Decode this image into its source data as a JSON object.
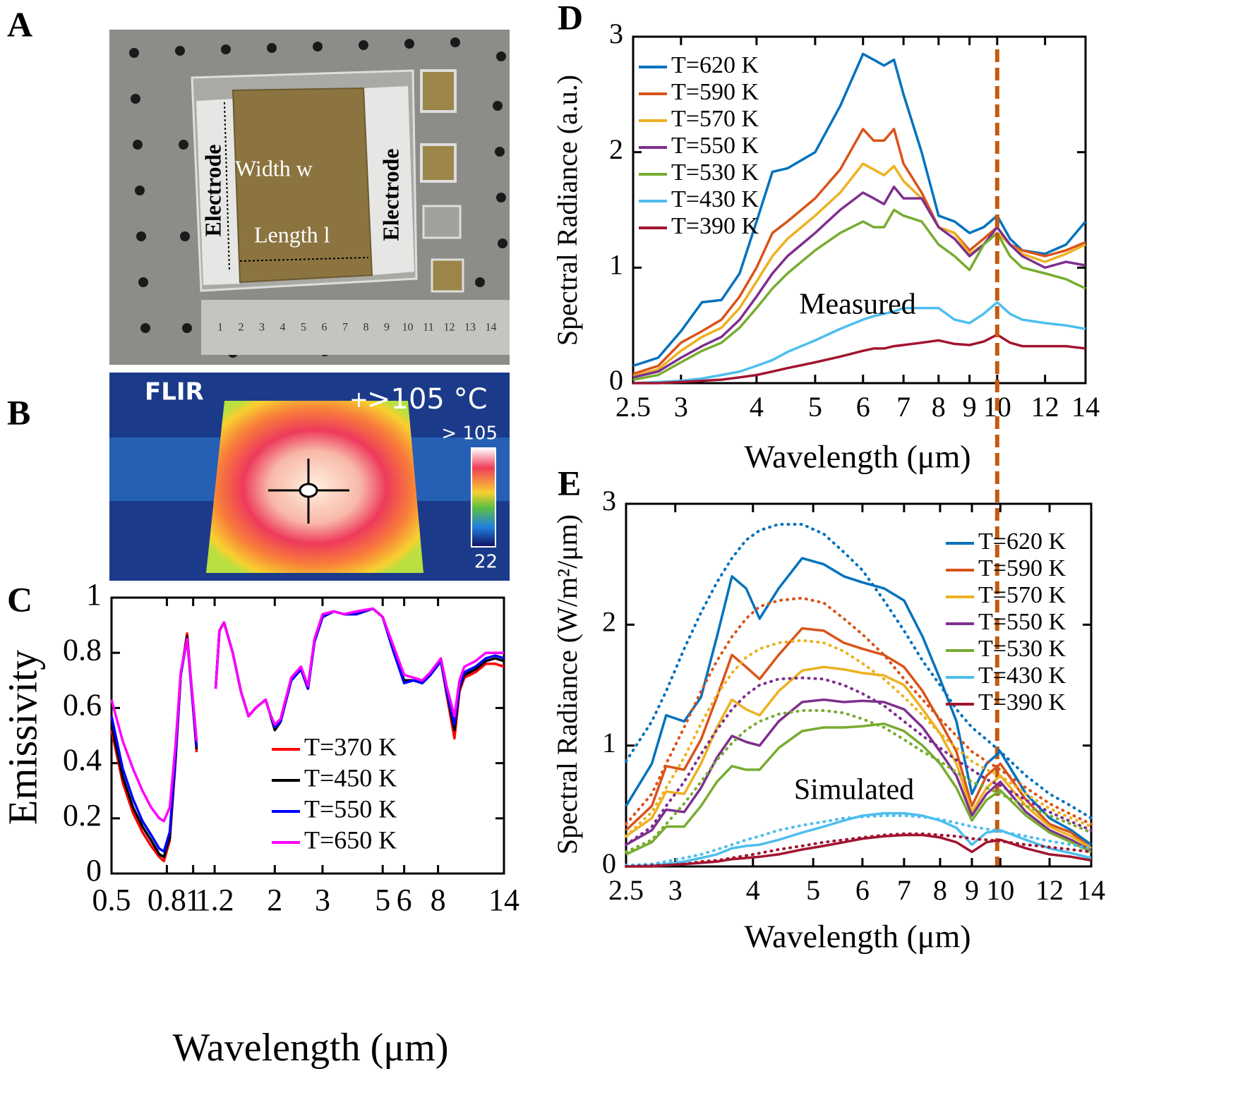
{
  "panels": {
    "A": {
      "label": "A",
      "electrode_left": "Electrode",
      "electrode_right": "Electrode",
      "width": "Width w",
      "length": "Length l",
      "ruler": [
        1,
        2,
        3,
        4,
        5,
        6,
        7,
        8,
        9,
        10,
        11,
        12,
        13,
        14
      ]
    },
    "B": {
      "label": "B",
      "brand": "FLIR",
      "reading": ">105 °C",
      "scale_max": "> 105",
      "scale_min": "22"
    }
  },
  "chart_data": [
    {
      "type": "line",
      "panel": "C",
      "x_label": "Wavelength (μm)",
      "y_label": "Emissivity",
      "xscale": "log",
      "xlim": [
        0.5,
        14
      ],
      "xticks": [
        0.5,
        0.8,
        1,
        1.2,
        2,
        3,
        5,
        6,
        8,
        14
      ],
      "ylim": [
        0,
        1
      ],
      "yticks": [
        0,
        0.2,
        0.4,
        0.6,
        0.8,
        1
      ],
      "x": [
        0.5,
        0.55,
        0.6,
        0.65,
        0.7,
        0.75,
        0.78,
        0.82,
        0.86,
        0.9,
        0.95,
        1.0,
        1.03,
        1.1,
        1.21,
        1.25,
        1.3,
        1.4,
        1.5,
        1.6,
        1.7,
        1.85,
        1.92,
        2.0,
        2.1,
        2.3,
        2.5,
        2.65,
        2.8,
        3.0,
        3.3,
        3.6,
        4.0,
        4.6,
        5.0,
        5.5,
        6.0,
        6.5,
        7.0,
        7.5,
        8.2,
        8.6,
        9.2,
        9.6,
        10,
        11,
        12,
        13,
        14
      ],
      "series": [
        {
          "name": "T=370 K",
          "color": "#ff0000",
          "values": [
            0.52,
            0.33,
            0.22,
            0.15,
            0.1,
            0.06,
            0.045,
            0.12,
            0.4,
            0.72,
            0.87,
            0.6,
            0.44,
            null,
            0.67,
            0.88,
            0.91,
            0.8,
            0.66,
            0.57,
            0.6,
            0.63,
            0.58,
            0.52,
            0.55,
            0.7,
            0.74,
            0.67,
            0.84,
            0.93,
            0.95,
            0.94,
            0.94,
            0.96,
            0.93,
            0.8,
            0.7,
            0.7,
            0.69,
            0.72,
            0.77,
            0.65,
            0.49,
            0.66,
            0.71,
            0.73,
            0.76,
            0.76,
            0.75
          ]
        },
        {
          "name": "T=450 K",
          "color": "#000000",
          "values": [
            0.54,
            0.35,
            0.24,
            0.17,
            0.12,
            0.07,
            0.06,
            0.13,
            0.41,
            0.72,
            0.86,
            0.6,
            0.45,
            null,
            0.67,
            0.88,
            0.91,
            0.8,
            0.66,
            0.57,
            0.6,
            0.63,
            0.58,
            0.52,
            0.55,
            0.7,
            0.74,
            0.67,
            0.84,
            0.93,
            0.95,
            0.94,
            0.94,
            0.96,
            0.93,
            0.8,
            0.7,
            0.7,
            0.69,
            0.72,
            0.77,
            0.66,
            0.52,
            0.67,
            0.72,
            0.74,
            0.77,
            0.78,
            0.77
          ]
        },
        {
          "name": "T=550 K",
          "color": "#0000ff",
          "values": [
            0.57,
            0.38,
            0.27,
            0.19,
            0.14,
            0.09,
            0.08,
            0.15,
            0.42,
            0.72,
            0.85,
            0.6,
            0.46,
            null,
            0.67,
            0.88,
            0.91,
            0.8,
            0.66,
            0.57,
            0.6,
            0.63,
            0.58,
            0.53,
            0.55,
            0.7,
            0.74,
            0.67,
            0.84,
            0.93,
            0.95,
            0.94,
            0.94,
            0.96,
            0.93,
            0.8,
            0.69,
            0.7,
            0.69,
            0.72,
            0.77,
            0.66,
            0.54,
            0.68,
            0.73,
            0.75,
            0.78,
            0.79,
            0.78
          ]
        },
        {
          "name": "T=650 K",
          "color": "#ff00ff",
          "values": [
            0.63,
            0.48,
            0.38,
            0.3,
            0.24,
            0.2,
            0.19,
            0.24,
            0.46,
            0.73,
            0.85,
            0.62,
            0.48,
            null,
            0.67,
            0.88,
            0.91,
            0.8,
            0.66,
            0.57,
            0.6,
            0.63,
            0.58,
            0.54,
            0.56,
            0.71,
            0.75,
            0.68,
            0.85,
            0.94,
            0.95,
            0.94,
            0.95,
            0.96,
            0.93,
            0.82,
            0.72,
            0.71,
            0.7,
            0.73,
            0.78,
            0.68,
            0.57,
            0.7,
            0.75,
            0.77,
            0.8,
            0.8,
            0.8
          ]
        }
      ]
    },
    {
      "type": "line",
      "panel": "D",
      "annotation": "Measured",
      "x_label": "Wavelength (μm)",
      "y_label": "Spectral Radiance  (a.u.)",
      "xscale": "log",
      "xlim": [
        2.5,
        14
      ],
      "xticks": [
        2.5,
        3,
        4,
        5,
        6,
        7,
        8,
        9,
        10,
        12,
        14
      ],
      "ylim": [
        0,
        3
      ],
      "yticks": [
        0,
        1,
        2,
        3
      ],
      "vline": 10,
      "x": [
        2.5,
        2.75,
        3,
        3.25,
        3.5,
        3.75,
        4,
        4.25,
        4.5,
        5,
        5.5,
        6,
        6.25,
        6.5,
        6.75,
        7,
        7.5,
        8,
        8.5,
        9,
        9.5,
        10,
        10.5,
        11,
        12,
        13,
        14
      ],
      "series": [
        {
          "name": "T=620 K",
          "color": "#0072bd",
          "values": [
            0.15,
            0.22,
            0.45,
            0.7,
            0.72,
            0.95,
            1.4,
            1.83,
            1.86,
            2.0,
            2.4,
            2.85,
            2.8,
            2.75,
            2.8,
            2.5,
            2.0,
            1.45,
            1.4,
            1.3,
            1.35,
            1.45,
            1.25,
            1.15,
            1.12,
            1.2,
            1.4
          ]
        },
        {
          "name": "T=590 K",
          "color": "#d95319",
          "values": [
            0.08,
            0.15,
            0.35,
            0.45,
            0.55,
            0.75,
            1.0,
            1.3,
            1.4,
            1.6,
            1.85,
            2.2,
            2.1,
            2.1,
            2.2,
            1.9,
            1.65,
            1.35,
            1.3,
            1.15,
            1.25,
            1.35,
            1.2,
            1.15,
            1.1,
            1.15,
            1.22
          ]
        },
        {
          "name": "T=570 K",
          "color": "#edb120",
          "values": [
            0.06,
            0.12,
            0.28,
            0.4,
            0.48,
            0.65,
            0.88,
            1.1,
            1.25,
            1.45,
            1.65,
            1.9,
            1.85,
            1.8,
            1.88,
            1.75,
            1.6,
            1.35,
            1.3,
            1.12,
            1.2,
            1.3,
            1.2,
            1.12,
            1.05,
            1.12,
            1.2
          ]
        },
        {
          "name": "T=550 K",
          "color": "#7e2f8e",
          "values": [
            0.05,
            0.1,
            0.22,
            0.32,
            0.4,
            0.55,
            0.75,
            0.95,
            1.1,
            1.3,
            1.5,
            1.65,
            1.6,
            1.55,
            1.7,
            1.6,
            1.6,
            1.35,
            1.25,
            1.1,
            1.2,
            1.35,
            1.2,
            1.1,
            1.0,
            1.05,
            1.02
          ]
        },
        {
          "name": "T=530 K",
          "color": "#77ac30",
          "values": [
            0.03,
            0.07,
            0.18,
            0.28,
            0.35,
            0.48,
            0.65,
            0.82,
            0.95,
            1.15,
            1.3,
            1.4,
            1.35,
            1.35,
            1.5,
            1.45,
            1.4,
            1.2,
            1.1,
            0.98,
            1.2,
            1.3,
            1.1,
            1.0,
            0.95,
            0.9,
            0.82
          ]
        },
        {
          "name": "T=430 K",
          "color": "#4dbeee",
          "values": [
            0,
            0.01,
            0.02,
            0.04,
            0.07,
            0.1,
            0.15,
            0.2,
            0.27,
            0.37,
            0.47,
            0.55,
            0.58,
            0.6,
            0.62,
            0.65,
            0.65,
            0.65,
            0.55,
            0.52,
            0.6,
            0.7,
            0.6,
            0.55,
            0.52,
            0.5,
            0.47
          ]
        },
        {
          "name": "T=390 K",
          "color": "#a2142f",
          "values": [
            0,
            0,
            0.01,
            0.02,
            0.03,
            0.05,
            0.07,
            0.1,
            0.13,
            0.18,
            0.23,
            0.28,
            0.3,
            0.3,
            0.32,
            0.33,
            0.35,
            0.37,
            0.34,
            0.33,
            0.36,
            0.42,
            0.35,
            0.32,
            0.32,
            0.32,
            0.3
          ]
        }
      ]
    },
    {
      "type": "line",
      "panel": "E",
      "annotation": "Simulated",
      "x_label": "Wavelength (μm)",
      "y_label": "Spectral Radiance  (W/m²/μm)",
      "xscale": "log",
      "xlim": [
        2.5,
        14
      ],
      "xticks": [
        2.5,
        3,
        4,
        5,
        6,
        7,
        8,
        9,
        10,
        12,
        14
      ],
      "ylim": [
        0,
        3
      ],
      "yticks": [
        0,
        1,
        2,
        3
      ],
      "x": [
        2.5,
        2.75,
        2.9,
        3.1,
        3.3,
        3.5,
        3.7,
        3.9,
        4.1,
        4.4,
        4.8,
        5.2,
        5.6,
        6,
        6.5,
        7,
        7.5,
        8,
        8.5,
        9,
        9.5,
        10,
        11,
        12,
        13,
        14
      ],
      "series": [
        {
          "name": "T=620 K",
          "color": "#0072bd",
          "values": [
            0.5,
            0.85,
            1.25,
            1.2,
            1.4,
            1.9,
            2.4,
            2.3,
            2.05,
            2.3,
            2.55,
            2.5,
            2.4,
            2.35,
            2.3,
            2.2,
            1.9,
            1.55,
            1.2,
            0.6,
            0.85,
            0.95,
            0.6,
            0.4,
            0.3,
            0.18
          ],
          "dotted_values": [
            0.87,
            1.2,
            1.45,
            1.8,
            2.1,
            2.35,
            2.55,
            2.7,
            2.78,
            2.83,
            2.83,
            2.75,
            2.6,
            2.45,
            2.2,
            1.95,
            1.7,
            1.5,
            1.3,
            1.15,
            1.05,
            0.95,
            0.75,
            0.6,
            0.5,
            0.4
          ]
        },
        {
          "name": "T=590 K",
          "color": "#d95319",
          "values": [
            0.3,
            0.5,
            0.83,
            0.8,
            1.05,
            1.4,
            1.75,
            1.65,
            1.55,
            1.75,
            1.97,
            1.95,
            1.85,
            1.8,
            1.75,
            1.65,
            1.45,
            1.2,
            0.95,
            0.5,
            0.75,
            0.85,
            0.55,
            0.35,
            0.28,
            0.15
          ],
          "dotted_values": [
            0.35,
            0.6,
            0.85,
            1.15,
            1.45,
            1.7,
            1.9,
            2.05,
            2.15,
            2.2,
            2.22,
            2.18,
            2.05,
            1.92,
            1.75,
            1.55,
            1.38,
            1.22,
            1.08,
            0.95,
            0.87,
            0.8,
            0.65,
            0.52,
            0.43,
            0.35
          ]
        },
        {
          "name": "T=570 K",
          "color": "#edb120",
          "values": [
            0.25,
            0.4,
            0.62,
            0.6,
            0.85,
            1.15,
            1.38,
            1.3,
            1.25,
            1.45,
            1.62,
            1.65,
            1.63,
            1.6,
            1.58,
            1.5,
            1.3,
            1.1,
            0.85,
            0.45,
            0.65,
            0.75,
            0.5,
            0.33,
            0.25,
            0.15
          ],
          "dotted_values": [
            0.25,
            0.45,
            0.65,
            0.9,
            1.18,
            1.42,
            1.6,
            1.73,
            1.8,
            1.85,
            1.87,
            1.85,
            1.78,
            1.68,
            1.55,
            1.4,
            1.25,
            1.1,
            0.98,
            0.87,
            0.8,
            0.75,
            0.6,
            0.48,
            0.4,
            0.33
          ]
        },
        {
          "name": "T=550 K",
          "color": "#7e2f8e",
          "values": [
            0.18,
            0.3,
            0.47,
            0.45,
            0.65,
            0.9,
            1.08,
            1.03,
            1.0,
            1.2,
            1.36,
            1.38,
            1.36,
            1.37,
            1.36,
            1.3,
            1.15,
            0.95,
            0.75,
            0.42,
            0.6,
            0.7,
            0.45,
            0.3,
            0.22,
            0.13
          ],
          "dotted_values": [
            0.18,
            0.33,
            0.5,
            0.7,
            0.93,
            1.13,
            1.3,
            1.42,
            1.5,
            1.55,
            1.56,
            1.55,
            1.5,
            1.43,
            1.33,
            1.2,
            1.08,
            0.98,
            0.88,
            0.8,
            0.72,
            0.67,
            0.55,
            0.45,
            0.37,
            0.3
          ]
        },
        {
          "name": "T=530 K",
          "color": "#77ac30",
          "values": [
            0.1,
            0.2,
            0.33,
            0.33,
            0.5,
            0.7,
            0.83,
            0.8,
            0.8,
            0.98,
            1.12,
            1.15,
            1.15,
            1.16,
            1.18,
            1.12,
            1.0,
            0.85,
            0.65,
            0.38,
            0.55,
            0.63,
            0.42,
            0.28,
            0.2,
            0.12
          ],
          "dotted_values": [
            0.12,
            0.22,
            0.35,
            0.52,
            0.7,
            0.88,
            1.02,
            1.13,
            1.2,
            1.26,
            1.29,
            1.29,
            1.27,
            1.22,
            1.15,
            1.05,
            0.95,
            0.87,
            0.78,
            0.7,
            0.65,
            0.6,
            0.5,
            0.42,
            0.35,
            0.28
          ]
        },
        {
          "name": "T=430 K",
          "color": "#4dbeee",
          "values": [
            0,
            0.01,
            0.02,
            0.04,
            0.07,
            0.1,
            0.15,
            0.17,
            0.18,
            0.22,
            0.28,
            0.33,
            0.38,
            0.42,
            0.44,
            0.44,
            0.42,
            0.38,
            0.32,
            0.18,
            0.28,
            0.3,
            0.22,
            0.15,
            0.11,
            0.07
          ],
          "dotted_values": [
            0.01,
            0.02,
            0.04,
            0.07,
            0.1,
            0.14,
            0.18,
            0.22,
            0.25,
            0.3,
            0.34,
            0.37,
            0.4,
            0.41,
            0.42,
            0.42,
            0.41,
            0.39,
            0.36,
            0.33,
            0.31,
            0.29,
            0.25,
            0.21,
            0.18,
            0.15
          ]
        },
        {
          "name": "T=390 K",
          "color": "#a2142f",
          "values": [
            0,
            0,
            0.01,
            0.02,
            0.03,
            0.04,
            0.06,
            0.07,
            0.08,
            0.1,
            0.14,
            0.17,
            0.2,
            0.23,
            0.25,
            0.26,
            0.26,
            0.24,
            0.2,
            0.12,
            0.2,
            0.22,
            0.15,
            0.1,
            0.08,
            0.05
          ],
          "dotted_values": [
            0,
            0.01,
            0.01,
            0.02,
            0.04,
            0.05,
            0.07,
            0.09,
            0.11,
            0.14,
            0.17,
            0.2,
            0.22,
            0.24,
            0.26,
            0.27,
            0.27,
            0.26,
            0.25,
            0.23,
            0.22,
            0.21,
            0.18,
            0.16,
            0.14,
            0.12
          ]
        }
      ]
    }
  ]
}
